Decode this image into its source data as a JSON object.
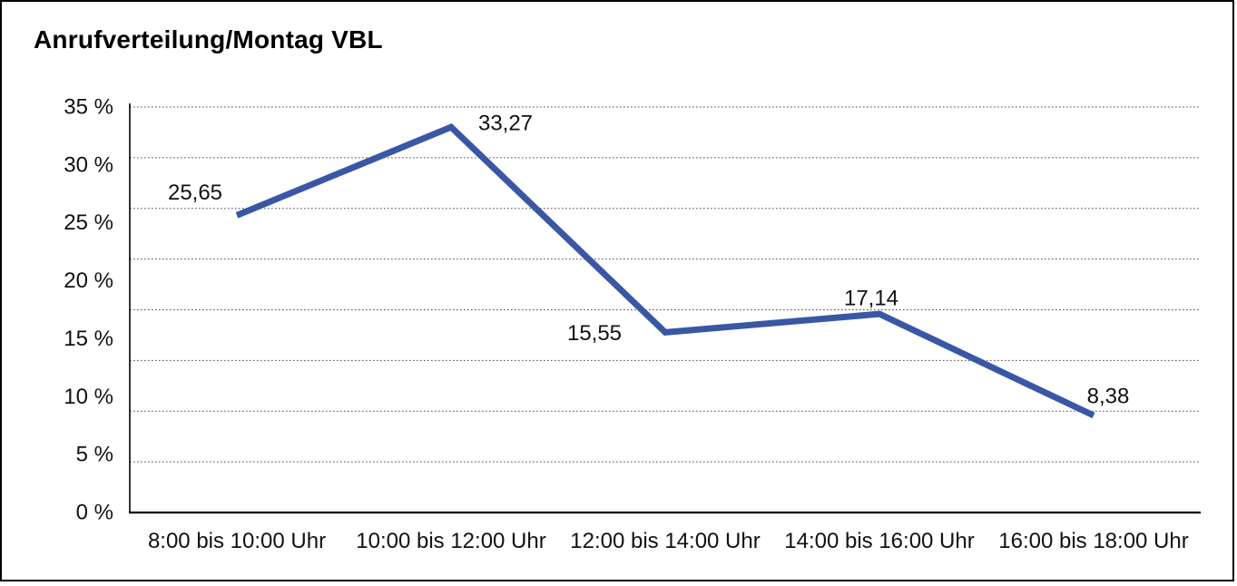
{
  "window": {
    "background": "#ffffff",
    "frame_border_color": "#000000"
  },
  "chart_data": {
    "type": "line",
    "title": "Anrufverteilung/Montag VBL",
    "categories": [
      "8:00 bis 10:00 Uhr",
      "10:00 bis 12:00 Uhr",
      "12:00 bis 14:00 Uhr",
      "14:00 bis 16:00 Uhr",
      "16:00 bis 18:00 Uhr"
    ],
    "values": [
      25.65,
      33.27,
      15.55,
      17.14,
      8.38
    ],
    "value_labels": [
      "25,65",
      "33,27",
      "15,55",
      "17,14",
      "8,38"
    ],
    "y_ticks": [
      "35 %",
      "30 %",
      "25 %",
      "20 %",
      "15 %",
      "10 %",
      "5 %",
      "0 %"
    ],
    "ylim": [
      0,
      35
    ],
    "xlabel": "",
    "ylabel": "",
    "legend": "none",
    "grid": {
      "horizontal": true,
      "style": "dotted",
      "intervals": 8
    },
    "line_color": "#3A57A5",
    "axis_color": "#000000",
    "gridline_color": "#4a4a4a",
    "text_color": "#111111"
  }
}
